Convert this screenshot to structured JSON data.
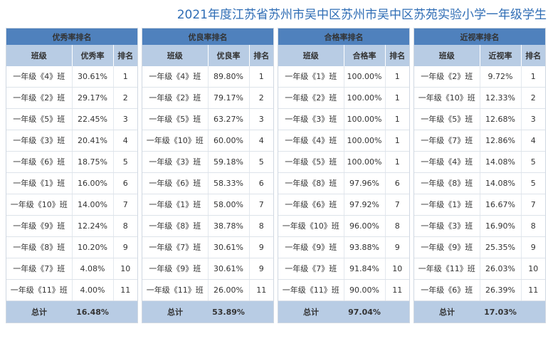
{
  "title": "2021年度江苏省苏州市吴中区苏州市吴中区苏苑实验小学一年级学生",
  "panels": [
    {
      "heading": "优秀率排名",
      "col_class": "班级",
      "col_rate": "优秀率",
      "col_rank": "排名",
      "rows": [
        {
          "cls": "一年级《4》班",
          "rate": "30.61%",
          "rank": "1"
        },
        {
          "cls": "一年级《2》班",
          "rate": "29.17%",
          "rank": "2"
        },
        {
          "cls": "一年级《5》班",
          "rate": "22.45%",
          "rank": "3"
        },
        {
          "cls": "一年级《3》班",
          "rate": "20.41%",
          "rank": "4"
        },
        {
          "cls": "一年级《6》班",
          "rate": "18.75%",
          "rank": "5"
        },
        {
          "cls": "一年级《1》班",
          "rate": "16.00%",
          "rank": "6"
        },
        {
          "cls": "一年级《10》班",
          "rate": "14.00%",
          "rank": "7"
        },
        {
          "cls": "一年级《9》班",
          "rate": "12.24%",
          "rank": "8"
        },
        {
          "cls": "一年级《8》班",
          "rate": "10.20%",
          "rank": "9"
        },
        {
          "cls": "一年级《7》班",
          "rate": "4.08%",
          "rank": "10"
        },
        {
          "cls": "一年级《11》班",
          "rate": "4.00%",
          "rank": "11"
        }
      ],
      "total_label": "总计",
      "total_value": "16.48%"
    },
    {
      "heading": "优良率排名",
      "col_class": "班级",
      "col_rate": "优良率",
      "col_rank": "排名",
      "rows": [
        {
          "cls": "一年级《4》班",
          "rate": "89.80%",
          "rank": "1"
        },
        {
          "cls": "一年级《2》班",
          "rate": "79.17%",
          "rank": "2"
        },
        {
          "cls": "一年级《5》班",
          "rate": "63.27%",
          "rank": "3"
        },
        {
          "cls": "一年级《10》班",
          "rate": "60.00%",
          "rank": "4"
        },
        {
          "cls": "一年级《3》班",
          "rate": "59.18%",
          "rank": "5"
        },
        {
          "cls": "一年级《6》班",
          "rate": "58.33%",
          "rank": "6"
        },
        {
          "cls": "一年级《1》班",
          "rate": "58.00%",
          "rank": "7"
        },
        {
          "cls": "一年级《8》班",
          "rate": "38.78%",
          "rank": "8"
        },
        {
          "cls": "一年级《7》班",
          "rate": "30.61%",
          "rank": "9"
        },
        {
          "cls": "一年级《9》班",
          "rate": "30.61%",
          "rank": "9"
        },
        {
          "cls": "一年级《11》班",
          "rate": "26.00%",
          "rank": "11"
        }
      ],
      "total_label": "总计",
      "total_value": "53.89%"
    },
    {
      "heading": "合格率排名",
      "col_class": "班级",
      "col_rate": "合格率",
      "col_rank": "排名",
      "rows": [
        {
          "cls": "一年级《1》班",
          "rate": "100.00%",
          "rank": "1"
        },
        {
          "cls": "一年级《2》班",
          "rate": "100.00%",
          "rank": "1"
        },
        {
          "cls": "一年级《3》班",
          "rate": "100.00%",
          "rank": "1"
        },
        {
          "cls": "一年级《4》班",
          "rate": "100.00%",
          "rank": "1"
        },
        {
          "cls": "一年级《5》班",
          "rate": "100.00%",
          "rank": "1"
        },
        {
          "cls": "一年级《8》班",
          "rate": "97.96%",
          "rank": "6"
        },
        {
          "cls": "一年级《6》班",
          "rate": "97.92%",
          "rank": "7"
        },
        {
          "cls": "一年级《10》班",
          "rate": "96.00%",
          "rank": "8"
        },
        {
          "cls": "一年级《9》班",
          "rate": "93.88%",
          "rank": "9"
        },
        {
          "cls": "一年级《7》班",
          "rate": "91.84%",
          "rank": "10"
        },
        {
          "cls": "一年级《11》班",
          "rate": "90.00%",
          "rank": "11"
        }
      ],
      "total_label": "总计",
      "total_value": "97.04%"
    },
    {
      "heading": "近视率排名",
      "col_class": "班级",
      "col_rate": "近视率",
      "col_rank": "排名",
      "rows": [
        {
          "cls": "一年级《2》班",
          "rate": "9.72%",
          "rank": "1"
        },
        {
          "cls": "一年级《10》班",
          "rate": "12.33%",
          "rank": "2"
        },
        {
          "cls": "一年级《5》班",
          "rate": "12.68%",
          "rank": "3"
        },
        {
          "cls": "一年级《7》班",
          "rate": "12.86%",
          "rank": "4"
        },
        {
          "cls": "一年级《4》班",
          "rate": "14.08%",
          "rank": "5"
        },
        {
          "cls": "一年级《8》班",
          "rate": "14.08%",
          "rank": "5"
        },
        {
          "cls": "一年级《1》班",
          "rate": "16.67%",
          "rank": "7"
        },
        {
          "cls": "一年级《3》班",
          "rate": "16.90%",
          "rank": "8"
        },
        {
          "cls": "一年级《9》班",
          "rate": "25.35%",
          "rank": "9"
        },
        {
          "cls": "一年级《11》班",
          "rate": "26.03%",
          "rank": "10"
        },
        {
          "cls": "一年级《6》班",
          "rate": "26.39%",
          "rank": "11"
        }
      ],
      "total_label": "总计",
      "total_value": "17.03%"
    }
  ]
}
